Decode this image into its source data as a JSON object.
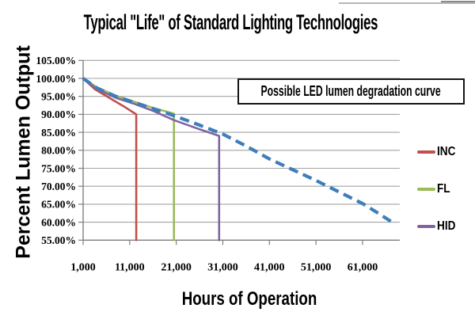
{
  "chart_data": {
    "type": "line",
    "title": "Typical \"Life\" of Standard Lighting Technologies",
    "xlabel": "Hours of Operation",
    "ylabel": "Percent Lumen Output",
    "x_tick_labels": [
      "1,000",
      "11,000",
      "21,000",
      "31,000",
      "41,000",
      "51,000",
      "61,000"
    ],
    "x_tick_values": [
      1000,
      11000,
      21000,
      31000,
      41000,
      51000,
      61000
    ],
    "y_tick_labels": [
      "105.00%",
      "100.00%",
      "95.00%",
      "90.00%",
      "85.00%",
      "80.00%",
      "75.00%",
      "70.00%",
      "65.00%",
      "60.00%",
      "55.00%"
    ],
    "y_tick_values": [
      105,
      100,
      95,
      90,
      85,
      80,
      75,
      70,
      65,
      60,
      55
    ],
    "xlim": [
      1000,
      69000
    ],
    "ylim": [
      55,
      105
    ],
    "grid": "horizontal-only",
    "grid_color": "#a3a3a3",
    "axis_color": "#7f7f7f",
    "legend_position": "right-outside",
    "annotation": {
      "text": "Possible LED lumen degradation curve"
    },
    "series": [
      {
        "name": "INC",
        "color": "#C0504D",
        "style": "solid",
        "in_legend": true,
        "points": [
          [
            1000,
            100
          ],
          [
            3500,
            97
          ],
          [
            7000,
            94.3
          ],
          [
            10000,
            92
          ],
          [
            12400,
            90
          ],
          [
            12400,
            55
          ]
        ]
      },
      {
        "name": "FL",
        "color": "#9BBB59",
        "style": "solid",
        "in_legend": true,
        "points": [
          [
            1000,
            100
          ],
          [
            4000,
            97.5
          ],
          [
            8000,
            95.2
          ],
          [
            12000,
            93.5
          ],
          [
            16000,
            91.8
          ],
          [
            20500,
            90.2
          ],
          [
            20500,
            55
          ]
        ]
      },
      {
        "name": "HID",
        "color": "#8064A2",
        "style": "solid",
        "in_legend": true,
        "points": [
          [
            1000,
            100
          ],
          [
            4000,
            97
          ],
          [
            8000,
            94.6
          ],
          [
            12000,
            92.9
          ],
          [
            16000,
            91
          ],
          [
            20500,
            88.4
          ],
          [
            25000,
            86.3
          ],
          [
            30200,
            84
          ],
          [
            30200,
            55
          ]
        ]
      },
      {
        "name": "LED",
        "color": "#3D7EBB",
        "style": "dashed",
        "in_legend": false,
        "points": [
          [
            1000,
            100
          ],
          [
            4000,
            97.3
          ],
          [
            8000,
            95
          ],
          [
            12000,
            93.3
          ],
          [
            16000,
            91.6
          ],
          [
            21000,
            89.4
          ],
          [
            26000,
            87
          ],
          [
            31000,
            84.5
          ],
          [
            36000,
            81.2
          ],
          [
            41000,
            77.6
          ],
          [
            46000,
            74.6
          ],
          [
            51000,
            71.6
          ],
          [
            56000,
            68.4
          ],
          [
            61000,
            65.2
          ],
          [
            64500,
            62.4
          ],
          [
            67600,
            59.8
          ]
        ]
      }
    ]
  }
}
